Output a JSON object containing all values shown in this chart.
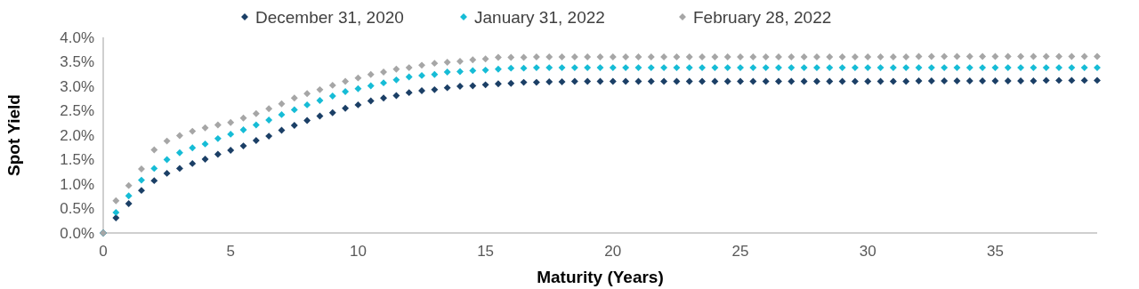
{
  "chart_data": {
    "type": "scatter",
    "xlabel": "Maturity (Years)",
    "ylabel": "Spot Yield",
    "x": [
      0,
      0.5,
      1,
      1.5,
      2,
      2.5,
      3,
      3.5,
      4,
      4.5,
      5,
      5.5,
      6,
      6.5,
      7,
      7.5,
      8,
      8.5,
      9,
      9.5,
      10,
      10.5,
      11,
      11.5,
      12,
      12.5,
      13,
      13.5,
      14,
      14.5,
      15,
      15.5,
      16,
      16.5,
      17,
      17.5,
      18,
      18.5,
      19,
      19.5,
      20,
      20.5,
      21,
      21.5,
      22,
      22.5,
      23,
      23.5,
      24,
      24.5,
      25,
      25.5,
      26,
      26.5,
      27,
      27.5,
      28,
      28.5,
      29,
      29.5,
      30,
      30.5,
      31,
      31.5,
      32,
      32.5,
      33,
      33.5,
      34,
      34.5,
      35,
      35.5,
      36,
      36.5,
      37,
      37.5,
      38,
      38.5,
      39
    ],
    "series": [
      {
        "name": "December 31, 2020",
        "color": "#1b3f66",
        "values": [
          0,
          0.31,
          0.6,
          0.87,
          1.07,
          1.22,
          1.32,
          1.42,
          1.51,
          1.61,
          1.69,
          1.78,
          1.89,
          1.98,
          2.1,
          2.2,
          2.3,
          2.39,
          2.46,
          2.55,
          2.62,
          2.7,
          2.76,
          2.81,
          2.87,
          2.91,
          2.93,
          2.97,
          3.0,
          3.01,
          3.03,
          3.05,
          3.06,
          3.08,
          3.08,
          3.09,
          3.09,
          3.1,
          3.1,
          3.1,
          3.1,
          3.1,
          3.1,
          3.1,
          3.1,
          3.1,
          3.1,
          3.1,
          3.1,
          3.1,
          3.1,
          3.1,
          3.1,
          3.1,
          3.1,
          3.1,
          3.1,
          3.1,
          3.1,
          3.1,
          3.1,
          3.1,
          3.1,
          3.1,
          3.11,
          3.11,
          3.11,
          3.11,
          3.11,
          3.11,
          3.11,
          3.11,
          3.11,
          3.11,
          3.12,
          3.12,
          3.12,
          3.12,
          3.12
        ]
      },
      {
        "name": "January 31, 2022",
        "color": "#16bcd6",
        "values": [
          0,
          0.42,
          0.76,
          1.08,
          1.32,
          1.5,
          1.64,
          1.74,
          1.82,
          1.93,
          2.02,
          2.11,
          2.21,
          2.31,
          2.42,
          2.52,
          2.62,
          2.71,
          2.8,
          2.89,
          2.95,
          3.01,
          3.07,
          3.13,
          3.19,
          3.22,
          3.24,
          3.29,
          3.3,
          3.32,
          3.33,
          3.35,
          3.37,
          3.37,
          3.38,
          3.38,
          3.38,
          3.38,
          3.38,
          3.38,
          3.38,
          3.38,
          3.38,
          3.38,
          3.38,
          3.38,
          3.38,
          3.38,
          3.38,
          3.38,
          3.38,
          3.38,
          3.38,
          3.38,
          3.38,
          3.38,
          3.38,
          3.38,
          3.38,
          3.38,
          3.38,
          3.38,
          3.38,
          3.38,
          3.38,
          3.38,
          3.38,
          3.38,
          3.38,
          3.38,
          3.38,
          3.38,
          3.38,
          3.38,
          3.38,
          3.38,
          3.38,
          3.38,
          3.38
        ]
      },
      {
        "name": "February 28, 2022",
        "color": "#a6a6a6",
        "values": [
          0,
          0.66,
          0.97,
          1.31,
          1.7,
          1.88,
          1.99,
          2.08,
          2.15,
          2.21,
          2.26,
          2.35,
          2.44,
          2.54,
          2.64,
          2.76,
          2.85,
          2.93,
          3.02,
          3.1,
          3.17,
          3.24,
          3.29,
          3.35,
          3.38,
          3.43,
          3.47,
          3.49,
          3.51,
          3.54,
          3.56,
          3.59,
          3.59,
          3.59,
          3.6,
          3.6,
          3.6,
          3.6,
          3.6,
          3.6,
          3.6,
          3.6,
          3.6,
          3.6,
          3.6,
          3.6,
          3.6,
          3.6,
          3.6,
          3.6,
          3.6,
          3.6,
          3.6,
          3.6,
          3.6,
          3.6,
          3.6,
          3.6,
          3.6,
          3.6,
          3.6,
          3.6,
          3.6,
          3.6,
          3.61,
          3.61,
          3.61,
          3.61,
          3.61,
          3.61,
          3.61,
          3.61,
          3.61,
          3.61,
          3.61,
          3.61,
          3.61,
          3.61,
          3.61
        ]
      }
    ],
    "xlim": [
      0,
      39
    ],
    "xticks": [
      0,
      5,
      10,
      15,
      20,
      25,
      30,
      35
    ],
    "ylim": [
      0,
      4
    ],
    "yticks": [
      {
        "value": 0,
        "label": "0.0%"
      },
      {
        "value": 0.5,
        "label": "0.5%"
      },
      {
        "value": 1,
        "label": "1.0%"
      },
      {
        "value": 1.5,
        "label": "1.5%"
      },
      {
        "value": 2,
        "label": "2.0%"
      },
      {
        "value": 2.5,
        "label": "2.5%"
      },
      {
        "value": 3,
        "label": "3.0%"
      },
      {
        "value": 3.5,
        "label": "3.5%"
      },
      {
        "value": 4,
        "label": "4.0%"
      }
    ],
    "grid": false,
    "legend": "top",
    "marker": "diamond"
  }
}
